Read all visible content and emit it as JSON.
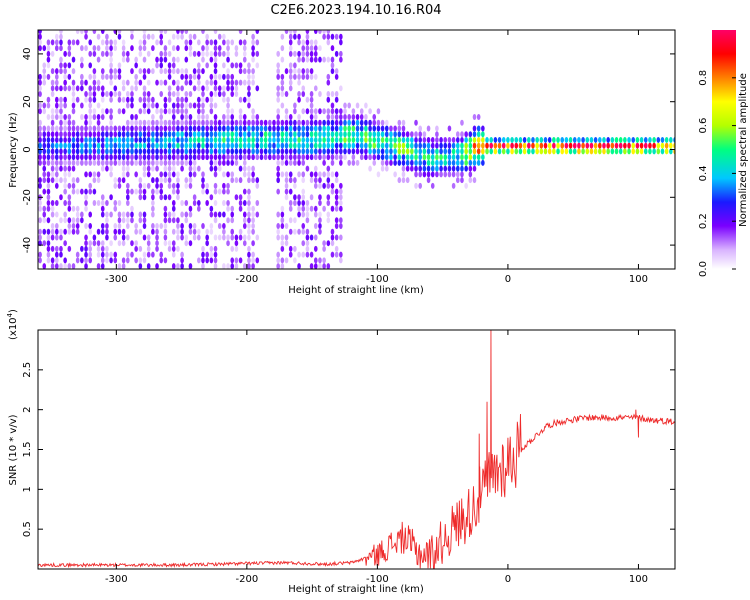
{
  "title": "C2E6.2023.194.10.16.R04",
  "chart_data": [
    {
      "type": "heatmap",
      "xlabel": "Height of straight line (km)",
      "ylabel": "Frequency (Hz)",
      "xlim": [
        -360,
        128
      ],
      "ylim": [
        -50,
        50
      ],
      "x_ticks": [
        -300,
        -200,
        -100,
        0,
        100
      ],
      "y_ticks": [
        -40,
        -20,
        0,
        20,
        40
      ],
      "colorbar": {
        "label": "Normalized spectral amplitude",
        "range": [
          0,
          1
        ],
        "ticks": [
          0.0,
          0.2,
          0.4,
          0.6,
          0.8
        ],
        "colors": [
          "#ffffff",
          "#d9b3ff",
          "#7a00ff",
          "#1a1aff",
          "#00c8ff",
          "#00ff80",
          "#b4ff00",
          "#ffff00",
          "#ff8000",
          "#ff0000",
          "#ff0066"
        ]
      },
      "ridge": {
        "x": [
          -360,
          -300,
          -250,
          -200,
          -150,
          -120,
          -100,
          -80,
          -60,
          -45,
          -35,
          -25,
          -15,
          0,
          50,
          100,
          128
        ],
        "freq": [
          0,
          1,
          2,
          3,
          3,
          5,
          2,
          -1,
          -5,
          -4,
          -3,
          0,
          0,
          0,
          0,
          0,
          0
        ],
        "amplitude": [
          0.3,
          0.35,
          0.4,
          0.45,
          0.45,
          0.5,
          0.5,
          0.5,
          0.45,
          0.4,
          0.55,
          0.75,
          0.85,
          0.9,
          0.9,
          0.9,
          0.9
        ]
      }
    },
    {
      "type": "line",
      "xlabel": "Height of straight line (km)",
      "ylabel": "SNR (10 * v/v)",
      "y_multiplier": "(x10",
      "y_multiplier_exp": "4",
      "y_multiplier_close": ")",
      "xlim": [
        -360,
        128
      ],
      "ylim": [
        0,
        3
      ],
      "x_ticks": [
        -300,
        -200,
        -100,
        0,
        100
      ],
      "y_ticks": [
        0.5,
        1.0,
        1.5,
        2.0,
        2.5
      ],
      "y_tick_labels": [
        "0.5",
        "1",
        "1.5",
        "2",
        "2.5"
      ],
      "color": "#ee2a2a",
      "series": [
        {
          "x": [
            -360,
            -300,
            -250,
            -200,
            -170,
            -140,
            -120,
            -100,
            -90,
            -80,
            -70,
            -60,
            -50,
            -40,
            -30,
            -20,
            -15,
            -10,
            0,
            10,
            20,
            30,
            40,
            60,
            80,
            100,
            110,
            128
          ],
          "values": [
            0.05,
            0.05,
            0.05,
            0.07,
            0.08,
            0.06,
            0.08,
            0.18,
            0.3,
            0.4,
            0.22,
            0.15,
            0.35,
            0.55,
            0.7,
            0.95,
            1.1,
            1.2,
            1.35,
            1.5,
            1.65,
            1.8,
            1.85,
            1.9,
            1.9,
            1.9,
            1.87,
            1.85
          ]
        }
      ],
      "spikes": [
        {
          "x": -13,
          "y": 3.0
        },
        {
          "x": -16,
          "y": 2.1
        },
        {
          "x": -22,
          "y": 1.7
        },
        {
          "x": 98,
          "y": 2.0
        },
        {
          "x": 100,
          "y": 1.65
        }
      ]
    }
  ]
}
